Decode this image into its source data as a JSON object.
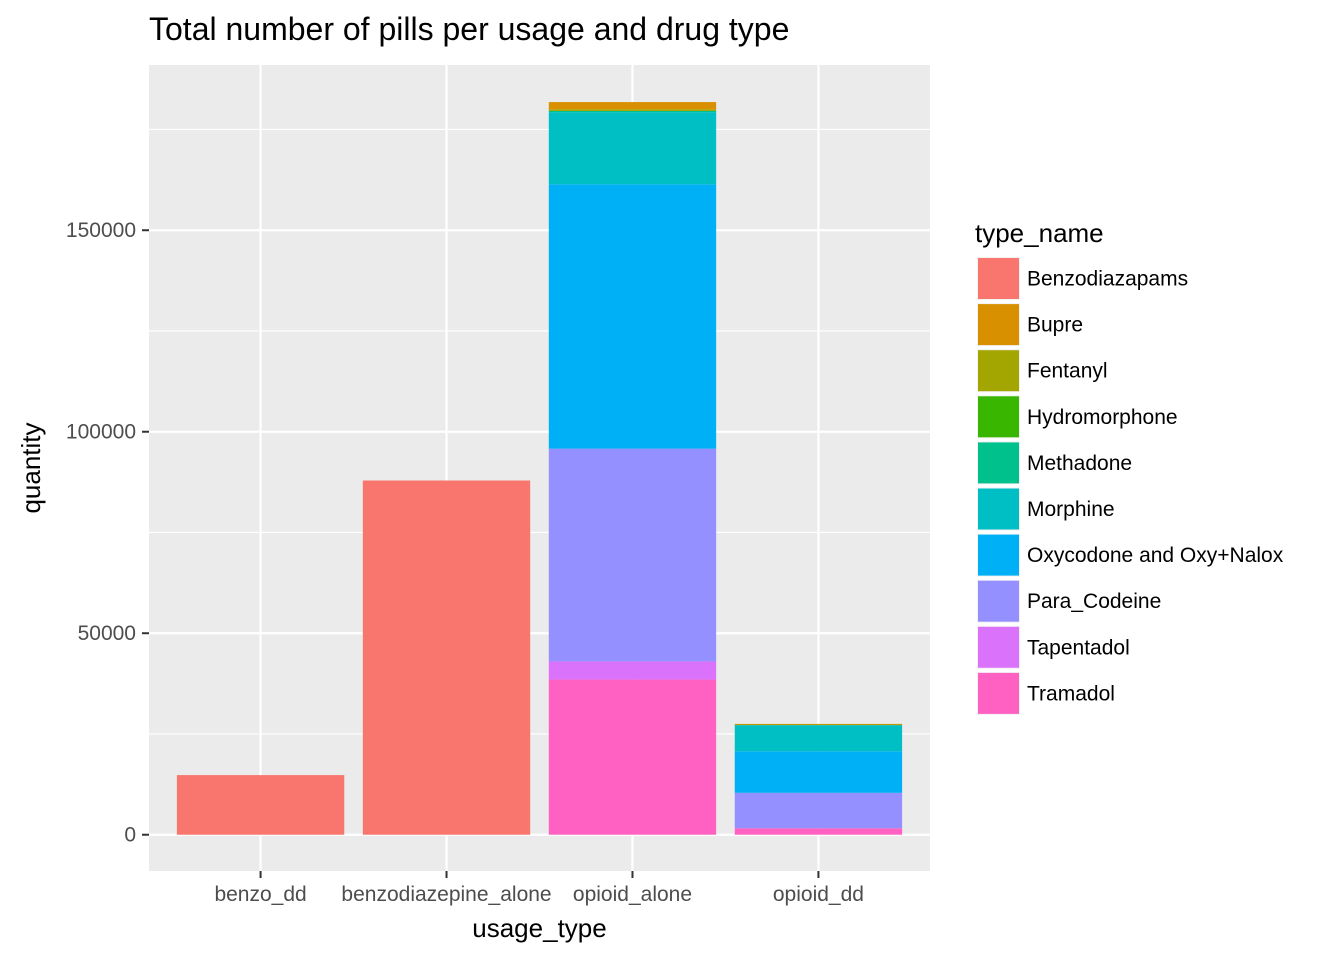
{
  "chart_data": {
    "type": "bar",
    "stacked": true,
    "title": "Total number of pills per usage and drug type",
    "xlabel": "usage_type",
    "ylabel": "quantity",
    "categories": [
      "benzo_dd",
      "benzodiazepine_alone",
      "opioid_alone",
      "opioid_dd"
    ],
    "ylim": [
      -9000,
      191000
    ],
    "yticks": [
      0,
      50000,
      100000,
      150000
    ],
    "ytick_labels": [
      "0",
      "50000",
      "100000",
      "150000"
    ],
    "grid": true,
    "legend": {
      "title": "type_name",
      "position": "right"
    },
    "series": [
      {
        "name": "Tramadol",
        "color": "#FF61C3",
        "values": [
          0,
          0,
          38500,
          1600
        ]
      },
      {
        "name": "Tapentadol",
        "color": "#DB72FB",
        "values": [
          0,
          0,
          4500,
          0
        ]
      },
      {
        "name": "Para_Codeine",
        "color": "#9590FF",
        "values": [
          0,
          0,
          52800,
          8800
        ]
      },
      {
        "name": "Oxycodone and Oxy+Nalox",
        "color": "#00B0F6",
        "values": [
          0,
          0,
          65600,
          10300
        ]
      },
      {
        "name": "Morphine",
        "color": "#00BFC4",
        "values": [
          0,
          0,
          17900,
          6500
        ]
      },
      {
        "name": "Methadone",
        "color": "#00C08B",
        "values": [
          0,
          0,
          300,
          0
        ]
      },
      {
        "name": "Hydromorphone",
        "color": "#39B600",
        "values": [
          0,
          0,
          0,
          0
        ]
      },
      {
        "name": "Fentanyl",
        "color": "#A3A500",
        "values": [
          0,
          0,
          400,
          150
        ]
      },
      {
        "name": "Bupre",
        "color": "#D89000",
        "values": [
          0,
          0,
          1800,
          150
        ]
      },
      {
        "name": "Benzodiazapams",
        "color": "#F8766D",
        "values": [
          14800,
          87900,
          0,
          0
        ]
      }
    ],
    "legend_order": [
      "Benzodiazapams",
      "Bupre",
      "Fentanyl",
      "Hydromorphone",
      "Methadone",
      "Morphine",
      "Oxycodone and Oxy+Nalox",
      "Para_Codeine",
      "Tapentadol",
      "Tramadol"
    ]
  }
}
